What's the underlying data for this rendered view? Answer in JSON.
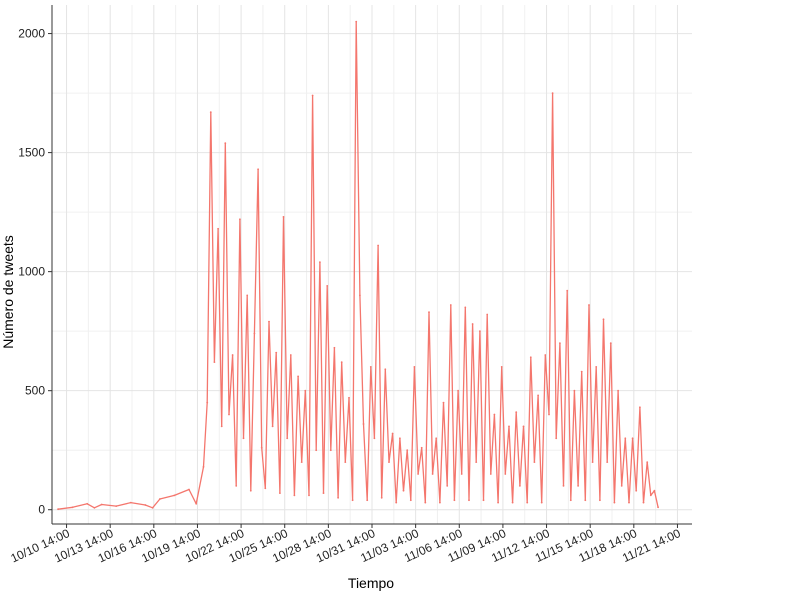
{
  "chart_data": {
    "type": "line",
    "xlabel": "Tiempo",
    "ylabel": "Número de tweets",
    "x_tick_labels": [
      "10/10 14:00",
      "10/13 14:00",
      "10/16 14:00",
      "10/19 14:00",
      "10/22 14:00",
      "10/25 14:00",
      "10/28 14:00",
      "10/31 14:00",
      "11/03 14:00",
      "11/06 14:00",
      "11/09 14:00",
      "11/12 14:00",
      "11/15 14:00",
      "11/18 14:00",
      "11/21 14:00"
    ],
    "y_ticks": [
      0,
      500,
      1000,
      1500,
      2000
    ],
    "y_tick_labels": [
      "0",
      "500",
      "1000",
      "1500",
      "2000"
    ],
    "ylim": [
      -60,
      2120
    ],
    "xlim": [
      "2014-10-09T14:00",
      "2014-11-22T14:00"
    ],
    "grid": true,
    "legend": "none",
    "series": [
      {
        "color": "#f4766d",
        "points": [
          [
            "2014-10-10T00:00",
            2
          ],
          [
            "2014-10-11T00:00",
            10
          ],
          [
            "2014-10-12T00:00",
            25
          ],
          [
            "2014-10-12T12:00",
            8
          ],
          [
            "2014-10-13T00:00",
            22
          ],
          [
            "2014-10-14T00:00",
            15
          ],
          [
            "2014-10-15T00:00",
            30
          ],
          [
            "2014-10-16T00:00",
            20
          ],
          [
            "2014-10-16T12:00",
            8
          ],
          [
            "2014-10-17T00:00",
            45
          ],
          [
            "2014-10-18T00:00",
            60
          ],
          [
            "2014-10-19T00:00",
            85
          ],
          [
            "2014-10-19T12:00",
            25
          ],
          [
            "2014-10-20T00:00",
            180
          ],
          [
            "2014-10-20T06:00",
            450
          ],
          [
            "2014-10-20T12:00",
            1670
          ],
          [
            "2014-10-20T18:00",
            620
          ],
          [
            "2014-10-21T00:00",
            1180
          ],
          [
            "2014-10-21T06:00",
            350
          ],
          [
            "2014-10-21T12:00",
            1540
          ],
          [
            "2014-10-21T18:00",
            400
          ],
          [
            "2014-10-22T00:00",
            650
          ],
          [
            "2014-10-22T06:00",
            100
          ],
          [
            "2014-10-22T12:00",
            1220
          ],
          [
            "2014-10-22T18:00",
            300
          ],
          [
            "2014-10-23T00:00",
            900
          ],
          [
            "2014-10-23T06:00",
            80
          ],
          [
            "2014-10-23T12:00",
            740
          ],
          [
            "2014-10-23T18:00",
            1430
          ],
          [
            "2014-10-24T00:00",
            260
          ],
          [
            "2014-10-24T06:00",
            90
          ],
          [
            "2014-10-24T12:00",
            790
          ],
          [
            "2014-10-24T18:00",
            350
          ],
          [
            "2014-10-25T00:00",
            660
          ],
          [
            "2014-10-25T06:00",
            70
          ],
          [
            "2014-10-25T12:00",
            1230
          ],
          [
            "2014-10-25T18:00",
            300
          ],
          [
            "2014-10-26T00:00",
            650
          ],
          [
            "2014-10-26T06:00",
            60
          ],
          [
            "2014-10-26T12:00",
            560
          ],
          [
            "2014-10-26T18:00",
            200
          ],
          [
            "2014-10-27T00:00",
            500
          ],
          [
            "2014-10-27T06:00",
            60
          ],
          [
            "2014-10-27T12:00",
            1740
          ],
          [
            "2014-10-27T18:00",
            250
          ],
          [
            "2014-10-28T00:00",
            1040
          ],
          [
            "2014-10-28T06:00",
            70
          ],
          [
            "2014-10-28T12:00",
            940
          ],
          [
            "2014-10-28T18:00",
            250
          ],
          [
            "2014-10-29T00:00",
            680
          ],
          [
            "2014-10-29T06:00",
            50
          ],
          [
            "2014-10-29T12:00",
            620
          ],
          [
            "2014-10-29T18:00",
            200
          ],
          [
            "2014-10-30T00:00",
            470
          ],
          [
            "2014-10-30T06:00",
            40
          ],
          [
            "2014-10-30T12:00",
            2050
          ],
          [
            "2014-10-30T18:00",
            900
          ],
          [
            "2014-10-31T00:00",
            360
          ],
          [
            "2014-10-31T06:00",
            40
          ],
          [
            "2014-10-31T12:00",
            600
          ],
          [
            "2014-10-31T18:00",
            300
          ],
          [
            "2014-11-01T00:00",
            1110
          ],
          [
            "2014-11-01T06:00",
            50
          ],
          [
            "2014-11-01T12:00",
            590
          ],
          [
            "2014-11-01T18:00",
            200
          ],
          [
            "2014-11-02T00:00",
            320
          ],
          [
            "2014-11-02T06:00",
            30
          ],
          [
            "2014-11-02T12:00",
            300
          ],
          [
            "2014-11-02T18:00",
            80
          ],
          [
            "2014-11-03T00:00",
            250
          ],
          [
            "2014-11-03T06:00",
            40
          ],
          [
            "2014-11-03T12:00",
            600
          ],
          [
            "2014-11-03T18:00",
            150
          ],
          [
            "2014-11-04T00:00",
            260
          ],
          [
            "2014-11-04T06:00",
            30
          ],
          [
            "2014-11-04T12:00",
            830
          ],
          [
            "2014-11-04T18:00",
            150
          ],
          [
            "2014-11-05T00:00",
            300
          ],
          [
            "2014-11-05T06:00",
            30
          ],
          [
            "2014-11-05T12:00",
            450
          ],
          [
            "2014-11-05T18:00",
            100
          ],
          [
            "2014-11-06T00:00",
            860
          ],
          [
            "2014-11-06T06:00",
            40
          ],
          [
            "2014-11-06T12:00",
            500
          ],
          [
            "2014-11-06T18:00",
            150
          ],
          [
            "2014-11-07T00:00",
            850
          ],
          [
            "2014-11-07T06:00",
            40
          ],
          [
            "2014-11-07T12:00",
            780
          ],
          [
            "2014-11-07T18:00",
            200
          ],
          [
            "2014-11-08T00:00",
            750
          ],
          [
            "2014-11-08T06:00",
            40
          ],
          [
            "2014-11-08T12:00",
            820
          ],
          [
            "2014-11-08T18:00",
            150
          ],
          [
            "2014-11-09T00:00",
            400
          ],
          [
            "2014-11-09T06:00",
            30
          ],
          [
            "2014-11-09T12:00",
            600
          ],
          [
            "2014-11-09T18:00",
            150
          ],
          [
            "2014-11-10T00:00",
            350
          ],
          [
            "2014-11-10T06:00",
            30
          ],
          [
            "2014-11-10T12:00",
            410
          ],
          [
            "2014-11-10T18:00",
            100
          ],
          [
            "2014-11-11T00:00",
            350
          ],
          [
            "2014-11-11T06:00",
            30
          ],
          [
            "2014-11-11T12:00",
            640
          ],
          [
            "2014-11-11T18:00",
            200
          ],
          [
            "2014-11-12T00:00",
            480
          ],
          [
            "2014-11-12T06:00",
            30
          ],
          [
            "2014-11-12T12:00",
            650
          ],
          [
            "2014-11-12T18:00",
            400
          ],
          [
            "2014-11-13T00:00",
            1750
          ],
          [
            "2014-11-13T06:00",
            300
          ],
          [
            "2014-11-13T12:00",
            700
          ],
          [
            "2014-11-13T18:00",
            100
          ],
          [
            "2014-11-14T00:00",
            920
          ],
          [
            "2014-11-14T06:00",
            40
          ],
          [
            "2014-11-14T12:00",
            500
          ],
          [
            "2014-11-14T18:00",
            100
          ],
          [
            "2014-11-15T00:00",
            580
          ],
          [
            "2014-11-15T06:00",
            40
          ],
          [
            "2014-11-15T12:00",
            860
          ],
          [
            "2014-11-15T18:00",
            200
          ],
          [
            "2014-11-16T00:00",
            600
          ],
          [
            "2014-11-16T06:00",
            40
          ],
          [
            "2014-11-16T12:00",
            800
          ],
          [
            "2014-11-16T18:00",
            200
          ],
          [
            "2014-11-17T00:00",
            700
          ],
          [
            "2014-11-17T06:00",
            30
          ],
          [
            "2014-11-17T12:00",
            500
          ],
          [
            "2014-11-17T18:00",
            100
          ],
          [
            "2014-11-18T00:00",
            300
          ],
          [
            "2014-11-18T06:00",
            30
          ],
          [
            "2014-11-18T12:00",
            300
          ],
          [
            "2014-11-18T18:00",
            80
          ],
          [
            "2014-11-19T00:00",
            430
          ],
          [
            "2014-11-19T06:00",
            30
          ],
          [
            "2014-11-19T12:00",
            200
          ],
          [
            "2014-11-19T18:00",
            60
          ],
          [
            "2014-11-20T00:00",
            80
          ],
          [
            "2014-11-20T06:00",
            10
          ]
        ]
      }
    ]
  }
}
